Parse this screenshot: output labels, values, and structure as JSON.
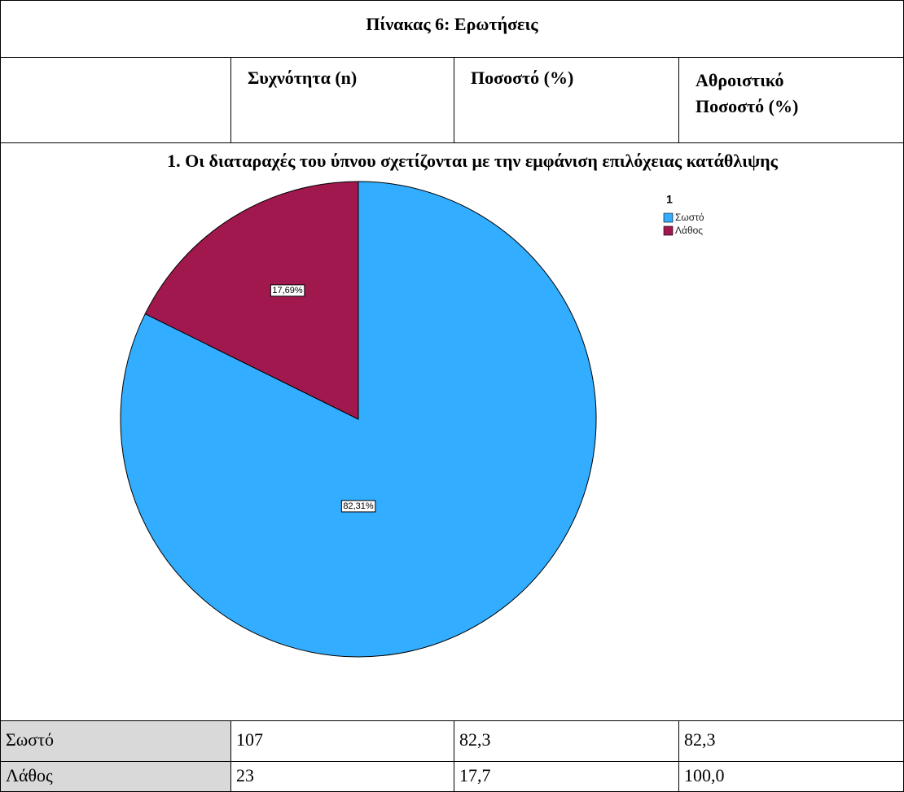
{
  "table": {
    "title": "Πίνακας 6: Ερωτήσεις",
    "headers": [
      "Συχνότητα (n)",
      "Ποσοστό (%)",
      "Αθροιστικό Ποσοστό (%)"
    ],
    "rows": [
      [
        "Σωστό",
        "107",
        "82,3",
        "82,3"
      ],
      [
        "Λάθος",
        "23",
        "17,7",
        "100,0"
      ]
    ]
  },
  "chart_data": {
    "type": "pie",
    "title": "1. Οι διαταραχές του ύπνου σχετίζονται με την εμφάνιση επιλόχειας κατάθλιψης",
    "legend_title": "1",
    "categories": [
      "Σωστό",
      "Λάθος"
    ],
    "values": [
      82.31,
      17.69
    ],
    "value_labels": [
      "82,31%",
      "17,69%"
    ],
    "colors": [
      "#33adff",
      "#a0184d"
    ]
  }
}
